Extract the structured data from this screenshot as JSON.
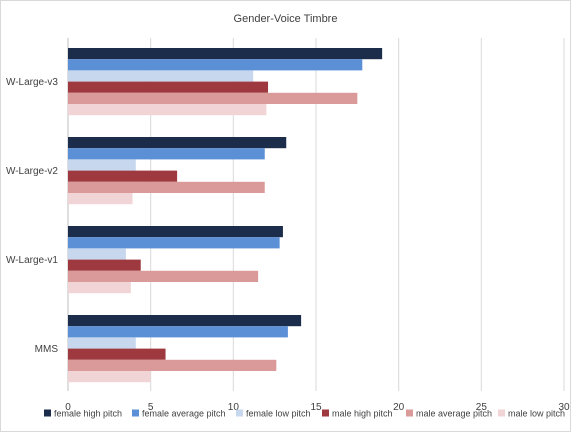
{
  "chart_data": {
    "type": "bar",
    "orientation": "horizontal",
    "title": "Gender-Voice Timbre",
    "xlabel": "",
    "ylabel": "",
    "categories": [
      "W-Large-v3",
      "W-Large-v2",
      "W-Large-v1",
      "MMS"
    ],
    "xlim": [
      0,
      30
    ],
    "xticks": [
      0,
      5,
      10,
      15,
      20,
      25,
      30
    ],
    "grid": true,
    "legend_position": "bottom",
    "series": [
      {
        "name": "female high pitch",
        "color": "#1b2d4a",
        "values": [
          19.0,
          13.2,
          13.0,
          14.1
        ]
      },
      {
        "name": "female average pitch",
        "color": "#5b8fd6",
        "values": [
          17.8,
          11.9,
          12.8,
          13.3
        ]
      },
      {
        "name": "female low pitch",
        "color": "#c7d7ee",
        "values": [
          11.2,
          4.1,
          3.5,
          4.1
        ]
      },
      {
        "name": "male high pitch",
        "color": "#9e3a3f",
        "values": [
          12.1,
          6.6,
          4.4,
          5.9
        ]
      },
      {
        "name": "male average pitch",
        "color": "#d99a99",
        "values": [
          17.5,
          11.9,
          11.5,
          12.6
        ]
      },
      {
        "name": "male low pitch",
        "color": "#f1d5d6",
        "values": [
          12.0,
          3.9,
          3.8,
          5.0
        ]
      }
    ]
  }
}
